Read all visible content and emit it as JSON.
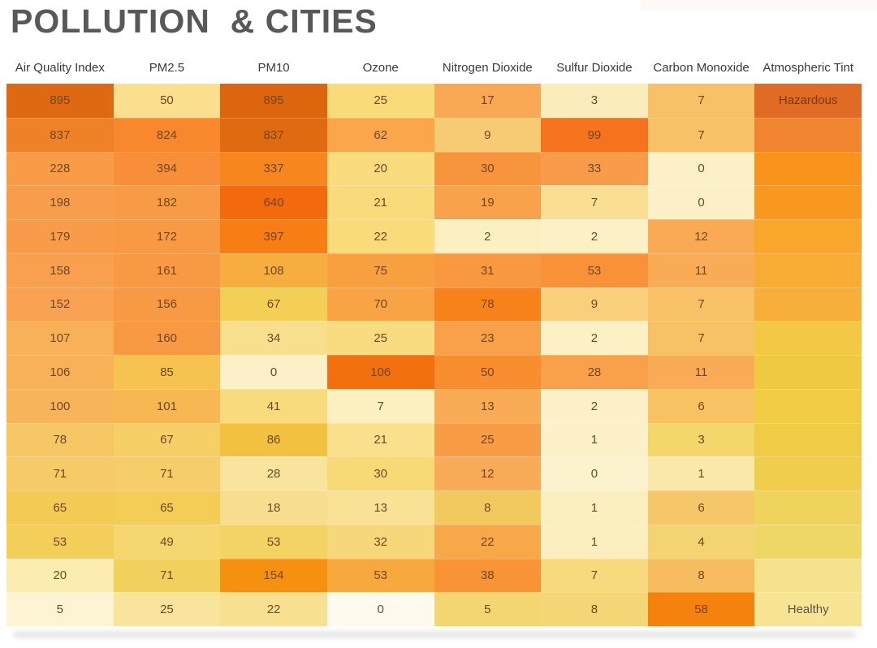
{
  "title": "POLLUTION  & CITIES",
  "colors": {
    "page_background": "#FFFFFF",
    "title_text": "#58585A",
    "header_text": "#3A3A3A",
    "cell_text": "#6F4823",
    "hazardous_text": "#7C360E",
    "healthy_text": "#5A5442",
    "scale_low": "#FEFBEE",
    "scale_high": "#DD650E"
  },
  "chart_data": {
    "type": "heatmap",
    "title": "POLLUTION  & CITIES",
    "columns": [
      "Air Quality Index",
      "PM2.5",
      "PM10",
      "Ozone",
      "Nitrogen Dioxide",
      "Sulfur Dioxide",
      "Carbon Monoxide",
      "Atmospheric Tint"
    ],
    "legend_position": "none",
    "grid": "off",
    "rows": [
      {
        "values": [
          895,
          50,
          895,
          25,
          17,
          3,
          7
        ],
        "tint": "Hazardous"
      },
      {
        "values": [
          837,
          824,
          837,
          62,
          9,
          99,
          7
        ],
        "tint": ""
      },
      {
        "values": [
          228,
          394,
          337,
          20,
          30,
          33,
          0
        ],
        "tint": ""
      },
      {
        "values": [
          198,
          182,
          640,
          21,
          19,
          7,
          0
        ],
        "tint": ""
      },
      {
        "values": [
          179,
          172,
          397,
          22,
          2,
          2,
          12
        ],
        "tint": ""
      },
      {
        "values": [
          158,
          161,
          108,
          75,
          31,
          53,
          11
        ],
        "tint": ""
      },
      {
        "values": [
          152,
          156,
          67,
          70,
          78,
          9,
          7
        ],
        "tint": ""
      },
      {
        "values": [
          107,
          160,
          34,
          25,
          23,
          2,
          7
        ],
        "tint": ""
      },
      {
        "values": [
          106,
          85,
          0,
          106,
          50,
          28,
          11
        ],
        "tint": ""
      },
      {
        "values": [
          100,
          101,
          41,
          7,
          13,
          2,
          6
        ],
        "tint": ""
      },
      {
        "values": [
          78,
          67,
          86,
          21,
          25,
          1,
          3
        ],
        "tint": ""
      },
      {
        "values": [
          71,
          71,
          28,
          30,
          12,
          0,
          1
        ],
        "tint": ""
      },
      {
        "values": [
          65,
          65,
          18,
          13,
          8,
          1,
          6
        ],
        "tint": ""
      },
      {
        "values": [
          53,
          49,
          53,
          32,
          22,
          1,
          4
        ],
        "tint": ""
      },
      {
        "values": [
          20,
          71,
          154,
          53,
          38,
          7,
          8
        ],
        "tint": ""
      },
      {
        "values": [
          5,
          25,
          22,
          0,
          5,
          8,
          58
        ],
        "tint": "Healthy"
      }
    ],
    "cell_colors": [
      [
        "#DF6912",
        "#F9DF8E",
        "#DD650E",
        "#FADB79",
        "#F9A853",
        "#FBECBB",
        "#F8C167",
        "#DF6B24"
      ],
      [
        "#EF8126",
        "#F8872E",
        "#E06A0F",
        "#F9A74A",
        "#F7CB74",
        "#F4731C",
        "#F8C167",
        "#F1842F"
      ],
      [
        "#F89C48",
        "#F88F38",
        "#F8861F",
        "#FADC7F",
        "#F8953C",
        "#F89C49",
        "#FCF0C8",
        "#F8941C"
      ],
      [
        "#F89D4C",
        "#F89B46",
        "#F26A0D",
        "#FADB7C",
        "#F9A24C",
        "#FADF93",
        "#FCF0C8",
        "#F8991F"
      ],
      [
        "#F89C49",
        "#F89A43",
        "#F87D12",
        "#FADB7C",
        "#FCEFC1",
        "#FCF0C5",
        "#F9AA52",
        "#F9A62C"
      ],
      [
        "#F9A04E",
        "#F89A43",
        "#F8AE3E",
        "#F89F40",
        "#F8993F",
        "#F89138",
        "#F9AC55",
        "#F8AC33"
      ],
      [
        "#F9A251",
        "#F89A43",
        "#F3D055",
        "#F8A344",
        "#F8821A",
        "#F9CF7C",
        "#F8C166",
        "#F8AF3A"
      ],
      [
        "#F9B158",
        "#F89A43",
        "#F8DF8E",
        "#F9DB80",
        "#F9A04A",
        "#FCF0C5",
        "#F8C166",
        "#F2C844"
      ],
      [
        "#F8B156",
        "#F6C250",
        "#FCF0CA",
        "#F2710E",
        "#F88E2F",
        "#F9A04B",
        "#F9AC55",
        "#F0C943"
      ],
      [
        "#F8B459",
        "#F7B853",
        "#F8DB7D",
        "#FCEFC0",
        "#F9AB56",
        "#FCF1C8",
        "#F8C263",
        "#F0CB43"
      ],
      [
        "#F7C765",
        "#F6CF67",
        "#F2C140",
        "#F9E08C",
        "#F89C45",
        "#FCF1C8",
        "#F3D76B",
        "#F0CC46"
      ],
      [
        "#F6CB67",
        "#F6CE69",
        "#F9E49E",
        "#F7D976",
        "#F9AC57",
        "#FCF3CE",
        "#F9E8A8",
        "#F0CE4C"
      ],
      [
        "#F3CB54",
        "#F3CD56",
        "#F7DD90",
        "#F9E295",
        "#F2C95F",
        "#FBEFC0",
        "#F6C768",
        "#EFD35C"
      ],
      [
        "#F3CE58",
        "#F5D66F",
        "#F4D365",
        "#F6D87A",
        "#F8A849",
        "#FBEFC0",
        "#F4D372",
        "#EFD765"
      ],
      [
        "#FBECB2",
        "#F2D05C",
        "#F6910F",
        "#F8A93E",
        "#F89436",
        "#F7D97E",
        "#F7BC5D",
        "#F4E28C"
      ],
      [
        "#FCF4D2",
        "#F8E49C",
        "#F8E091",
        "#FEFBEE",
        "#F3D672",
        "#F5D677",
        "#F5820D",
        "#F8E593"
      ]
    ]
  }
}
